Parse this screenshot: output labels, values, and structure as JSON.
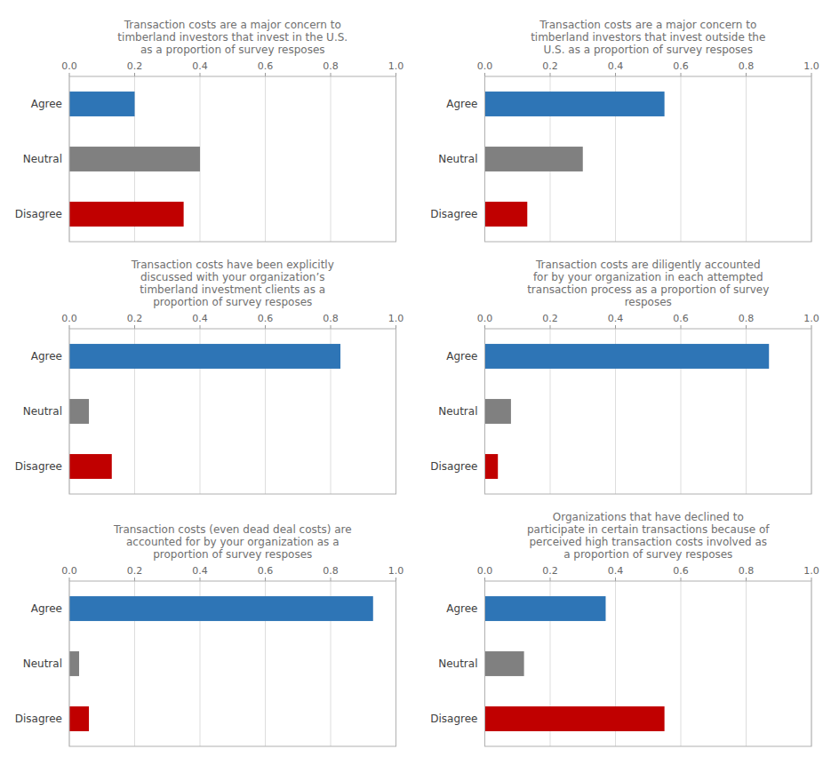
{
  "chart_data": [
    {
      "type": "bar",
      "orientation": "horizontal",
      "title": "Transaction costs are a major concern to\ntimberland investors that invest in the U.S.\nas a proportion of survey resposes",
      "categories": [
        "Agree",
        "Neutral",
        "Disagree"
      ],
      "values": [
        0.2,
        0.4,
        0.35
      ],
      "colors": [
        "#2e75b6",
        "#808080",
        "#c00000"
      ],
      "xlim": [
        0.0,
        1.0
      ],
      "xticks": [
        {
          "value": 0.0,
          "label": "0.0"
        },
        0.2,
        0.4,
        0.6,
        0.8,
        {
          "value": 1.0,
          "label": "1.0"
        }
      ],
      "grid": true
    },
    {
      "type": "bar",
      "orientation": "horizontal",
      "title": "Transaction costs are a major concern to\ntimberland investors that invest outside the\nU.S. as a proportion of survey resposes",
      "categories": [
        "Agree",
        "Neutral",
        "Disagree"
      ],
      "values": [
        0.55,
        0.3,
        0.13
      ],
      "colors": [
        "#2e75b6",
        "#808080",
        "#c00000"
      ],
      "xlim": [
        0.0,
        1.0
      ],
      "xticks": [
        {
          "value": 0.0,
          "label": "0.0"
        },
        0.2,
        0.4,
        0.6,
        0.8,
        {
          "value": 1.0,
          "label": "1.0"
        }
      ],
      "grid": true
    },
    {
      "type": "bar",
      "orientation": "horizontal",
      "title": "Transaction costs have been explicitly\ndiscussed with your organization’s\ntimberland investment clients as a\nproportion of survey resposes",
      "categories": [
        "Agree",
        "Neutral",
        "Disagree"
      ],
      "values": [
        0.83,
        0.06,
        0.13
      ],
      "colors": [
        "#2e75b6",
        "#808080",
        "#c00000"
      ],
      "xlim": [
        0.0,
        1.0
      ],
      "xticks": [
        {
          "value": 0.0,
          "label": "0.0"
        },
        0.2,
        0.4,
        0.6,
        0.8,
        {
          "value": 1.0,
          "label": "1.0"
        }
      ],
      "grid": true
    },
    {
      "type": "bar",
      "orientation": "horizontal",
      "title": "Transaction costs are diligently accounted\nfor by your organization in each attempted\ntransaction process as a proportion of survey\nresposes",
      "categories": [
        "Agree",
        "Neutral",
        "Disagree"
      ],
      "values": [
        0.87,
        0.08,
        0.04
      ],
      "colors": [
        "#2e75b6",
        "#808080",
        "#c00000"
      ],
      "xlim": [
        0.0,
        1.0
      ],
      "xticks": [
        {
          "value": 0.0,
          "label": "0.0"
        },
        0.2,
        0.4,
        0.6,
        0.8,
        {
          "value": 1.0,
          "label": "1.0"
        }
      ],
      "grid": true
    },
    {
      "type": "bar",
      "orientation": "horizontal",
      "title": "Transaction costs (even dead deal costs) are\naccounted for by your organization as a\nproportion of survey resposes",
      "categories": [
        "Agree",
        "Neutral",
        "Disagree"
      ],
      "values": [
        0.93,
        0.03,
        0.06
      ],
      "colors": [
        "#2e75b6",
        "#808080",
        "#c00000"
      ],
      "xlim": [
        0.0,
        1.0
      ],
      "xticks": [
        {
          "value": 0.0,
          "label": "0.0"
        },
        0.2,
        0.4,
        0.6,
        0.8,
        {
          "value": 1.0,
          "label": "1.0"
        }
      ],
      "grid": true
    },
    {
      "type": "bar",
      "orientation": "horizontal",
      "title": "Organizations that have declined to\nparticipate in certain transactions because of\nperceived high transaction costs involved as\na proportion of survey resposes",
      "categories": [
        "Agree",
        "Neutral",
        "Disagree"
      ],
      "values": [
        0.37,
        0.12,
        0.55
      ],
      "colors": [
        "#2e75b6",
        "#808080",
        "#c00000"
      ],
      "xlim": [
        0.0,
        1.0
      ],
      "xticks": [
        {
          "value": 0.0,
          "label": "0.0"
        },
        0.2,
        0.4,
        0.6,
        0.8,
        {
          "value": 1.0,
          "label": "1.0"
        }
      ],
      "grid": true
    }
  ]
}
